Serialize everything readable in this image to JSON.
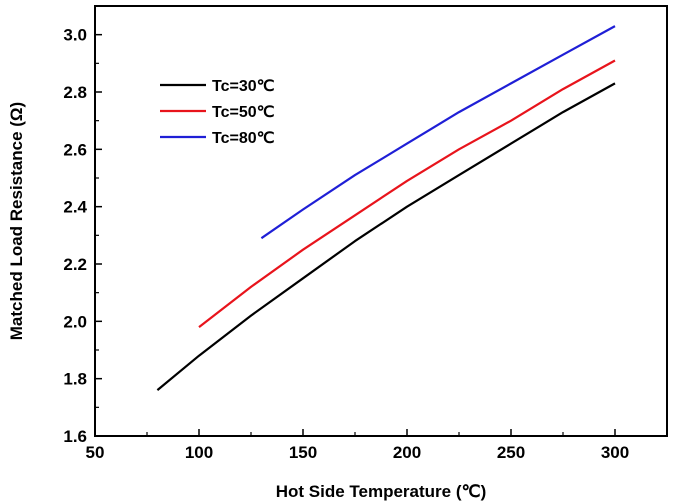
{
  "chart_data": {
    "type": "line",
    "xlabel": "Hot Side Temperature (℃)",
    "ylabel": "Matched Load Resistance (Ω)",
    "xlim": [
      50,
      325
    ],
    "ylim": [
      1.6,
      3.1
    ],
    "xticks": [
      50,
      100,
      150,
      200,
      250,
      300
    ],
    "yticks": [
      1.6,
      1.8,
      2.0,
      2.2,
      2.4,
      2.6,
      2.8,
      3.0
    ],
    "xtick_labels": [
      "50",
      "100",
      "150",
      "200",
      "250",
      "300"
    ],
    "ytick_labels": [
      "1.6",
      "1.8",
      "2.0",
      "2.2",
      "2.4",
      "2.6",
      "2.8",
      "3.0"
    ],
    "grid": false,
    "legend_position": "upper-left",
    "series": [
      {
        "name": "Tc=30℃",
        "color": "#000000",
        "x": [
          80,
          100,
          125,
          150,
          175,
          200,
          225,
          250,
          275,
          300
        ],
        "y": [
          1.76,
          1.88,
          2.02,
          2.15,
          2.28,
          2.4,
          2.51,
          2.62,
          2.73,
          2.83
        ]
      },
      {
        "name": "Tc=50℃",
        "color": "#e8141c",
        "x": [
          100,
          125,
          150,
          175,
          200,
          225,
          250,
          275,
          300
        ],
        "y": [
          1.98,
          2.12,
          2.25,
          2.37,
          2.49,
          2.6,
          2.7,
          2.81,
          2.91
        ]
      },
      {
        "name": "Tc=80℃",
        "color": "#1f1fd6",
        "x": [
          130,
          150,
          175,
          200,
          225,
          250,
          275,
          300
        ],
        "y": [
          2.29,
          2.39,
          2.51,
          2.62,
          2.73,
          2.83,
          2.93,
          3.03
        ]
      }
    ]
  }
}
